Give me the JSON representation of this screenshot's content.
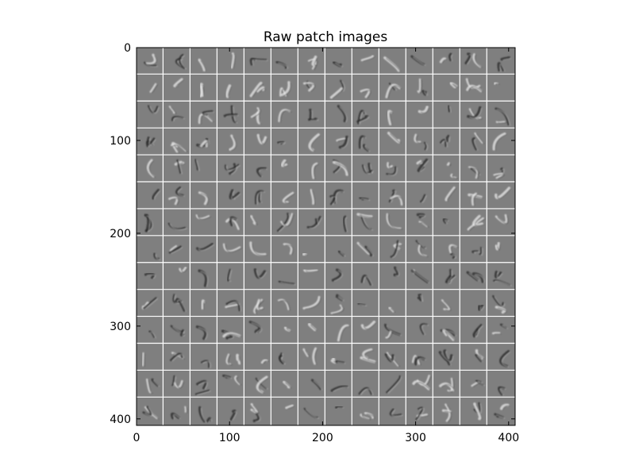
{
  "chart_data": {
    "type": "heatmap",
    "title": "Raw patch images",
    "xlabel": "",
    "ylabel": "",
    "xlim": [
      0,
      407
    ],
    "ylim": [
      407,
      0
    ],
    "x_ticks": [
      "0",
      "100",
      "200",
      "300",
      "400"
    ],
    "y_ticks": [
      "0",
      "100",
      "200",
      "300",
      "400"
    ],
    "x_tick_values": [
      0,
      100,
      200,
      300,
      400
    ],
    "y_tick_values": [
      0,
      100,
      200,
      300,
      400
    ],
    "grid_rows": 14,
    "grid_cols": 14,
    "patch_size": 28,
    "grid_separator_color": "#ffffff",
    "background_gray": "#7f7f7f",
    "grid": false,
    "legend": "none"
  }
}
